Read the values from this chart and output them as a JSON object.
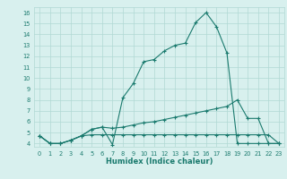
{
  "line1_x": [
    0,
    1,
    2,
    3,
    4,
    5,
    6,
    7,
    8,
    9,
    10,
    11,
    12,
    13,
    14,
    15,
    16,
    17,
    18,
    19,
    20,
    21,
    22,
    23
  ],
  "line1_y": [
    4.7,
    4.0,
    4.0,
    4.3,
    4.7,
    5.3,
    5.5,
    3.9,
    8.2,
    9.5,
    11.5,
    11.7,
    12.5,
    13.0,
    13.2,
    15.1,
    16.0,
    14.7,
    12.3,
    4.0,
    4.0,
    4.0,
    4.0,
    4.0
  ],
  "line2_x": [
    0,
    1,
    2,
    3,
    4,
    5,
    6,
    7,
    8,
    9,
    10,
    11,
    12,
    13,
    14,
    15,
    16,
    17,
    18,
    19,
    20,
    21,
    22,
    23
  ],
  "line2_y": [
    4.7,
    4.0,
    4.0,
    4.3,
    4.7,
    5.3,
    5.5,
    5.4,
    5.5,
    5.7,
    5.9,
    6.0,
    6.2,
    6.4,
    6.6,
    6.8,
    7.0,
    7.2,
    7.4,
    8.0,
    6.3,
    6.3,
    4.0,
    4.0
  ],
  "line3_x": [
    0,
    1,
    2,
    3,
    4,
    5,
    6,
    7,
    8,
    9,
    10,
    11,
    12,
    13,
    14,
    15,
    16,
    17,
    18,
    19,
    20,
    21,
    22,
    23
  ],
  "line3_y": [
    4.7,
    4.0,
    4.0,
    4.3,
    4.7,
    4.8,
    4.8,
    4.8,
    4.8,
    4.8,
    4.8,
    4.8,
    4.8,
    4.8,
    4.8,
    4.8,
    4.8,
    4.8,
    4.8,
    4.8,
    4.8,
    4.8,
    4.8,
    4.0
  ],
  "line_color": "#1a7a6e",
  "bg_color": "#d8f0ee",
  "grid_color": "#b0d8d4",
  "xlabel": "Humidex (Indice chaleur)",
  "ylabel_ticks": [
    4,
    5,
    6,
    7,
    8,
    9,
    10,
    11,
    12,
    13,
    14,
    15,
    16
  ],
  "xlim": [
    -0.5,
    23.5
  ],
  "ylim": [
    3.7,
    16.5
  ],
  "xticks": [
    0,
    1,
    2,
    3,
    4,
    5,
    6,
    7,
    8,
    9,
    10,
    11,
    12,
    13,
    14,
    15,
    16,
    17,
    18,
    19,
    20,
    21,
    22,
    23
  ]
}
